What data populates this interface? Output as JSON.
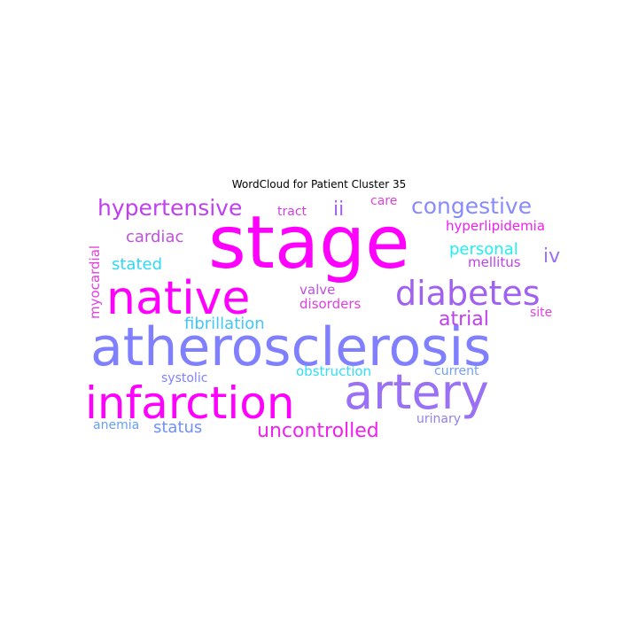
{
  "title": "WordCloud for Patient Cluster 35",
  "words": [
    {
      "text": "stage",
      "color": "#ff00ff"
    },
    {
      "text": "atherosclerosis",
      "color": "#8080ff"
    },
    {
      "text": "native",
      "color": "#ff00ff"
    },
    {
      "text": "artery",
      "color": "#9a70f5"
    },
    {
      "text": "infarction",
      "color": "#ff00ff"
    },
    {
      "text": "diabetes",
      "color": "#a060f0"
    },
    {
      "text": "hypertensive",
      "color": "#c040f0"
    },
    {
      "text": "congestive",
      "color": "#8a8aff"
    },
    {
      "text": "uncontrolled",
      "color": "#f020f0"
    },
    {
      "text": "atrial",
      "color": "#c040f0"
    },
    {
      "text": "ii",
      "color": "#a060f0"
    },
    {
      "text": "iv",
      "color": "#9a70f5"
    },
    {
      "text": "cardiac",
      "color": "#c050e0"
    },
    {
      "text": "stated",
      "color": "#30d8f8"
    },
    {
      "text": "status",
      "color": "#7090f8"
    },
    {
      "text": "fibrillation",
      "color": "#40c8f8"
    },
    {
      "text": "personal",
      "color": "#20f0f0"
    },
    {
      "text": "hyperlipidemia",
      "color": "#f020f0"
    },
    {
      "text": "mellitus",
      "color": "#c040f0"
    },
    {
      "text": "myocardial",
      "color": "#e040e0"
    },
    {
      "text": "valve",
      "color": "#c050e0"
    },
    {
      "text": "disorders",
      "color": "#e040e0"
    },
    {
      "text": "site",
      "color": "#e040e0"
    },
    {
      "text": "tract",
      "color": "#d040e0"
    },
    {
      "text": "care",
      "color": "#e040e0"
    },
    {
      "text": "obstruction",
      "color": "#30e0f8"
    },
    {
      "text": "current",
      "color": "#70a0f8"
    },
    {
      "text": "systolic",
      "color": "#8080ff"
    },
    {
      "text": "urinary",
      "color": "#9080f0"
    },
    {
      "text": "anemia",
      "color": "#6aa0f0"
    }
  ]
}
